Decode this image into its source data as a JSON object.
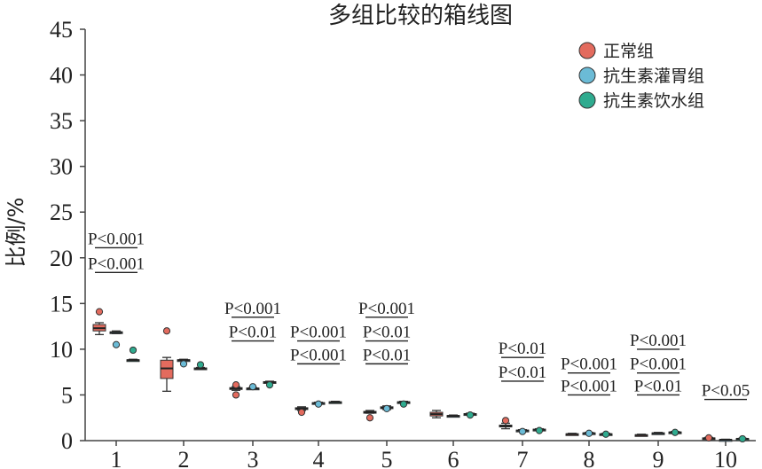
{
  "chart_data": {
    "type": "box",
    "title": "多组比较的箱线图",
    "xlabel": "",
    "ylabel": "比例/%",
    "ylim": [
      0,
      45
    ],
    "yticks": [
      0,
      5,
      10,
      15,
      20,
      25,
      30,
      35,
      40,
      45
    ],
    "categories": [
      "1",
      "2",
      "3",
      "4",
      "5",
      "6",
      "7",
      "8",
      "9",
      "10"
    ],
    "legend": {
      "placement": "top-right"
    },
    "series": [
      {
        "name": "正常组",
        "color": "#e36b5e",
        "boxes": [
          {
            "min": 11.6,
            "q1": 12.0,
            "median": 12.3,
            "q3": 12.7,
            "max": 12.9,
            "outliers": [
              14.1
            ]
          },
          {
            "min": 5.4,
            "q1": 6.8,
            "median": 7.9,
            "q3": 8.8,
            "max": 9.1,
            "outliers": [
              12.0
            ]
          },
          {
            "min": 5.5,
            "q1": 5.6,
            "median": 5.7,
            "q3": 5.8,
            "max": 5.9,
            "outliers": [
              6.1,
              5.0
            ]
          },
          {
            "min": 3.3,
            "q1": 3.4,
            "median": 3.5,
            "q3": 3.6,
            "max": 3.7,
            "outliers": [
              3.1
            ]
          },
          {
            "min": 3.0,
            "q1": 3.0,
            "median": 3.1,
            "q3": 3.2,
            "max": 3.3,
            "outliers": [
              2.5
            ]
          },
          {
            "min": 2.5,
            "q1": 2.7,
            "median": 2.9,
            "q3": 3.1,
            "max": 3.3,
            "outliers": []
          },
          {
            "min": 1.3,
            "q1": 1.5,
            "median": 1.6,
            "q3": 1.7,
            "max": 1.9,
            "outliers": [
              2.2
            ]
          },
          {
            "min": 0.6,
            "q1": 0.65,
            "median": 0.7,
            "q3": 0.75,
            "max": 0.8,
            "outliers": []
          },
          {
            "min": 0.5,
            "q1": 0.55,
            "median": 0.6,
            "q3": 0.65,
            "max": 0.7,
            "outliers": []
          },
          {
            "min": 0.15,
            "q1": 0.2,
            "median": 0.25,
            "q3": 0.3,
            "max": 0.35,
            "outliers": [
              0.3
            ]
          }
        ]
      },
      {
        "name": "抗生素灌胃组",
        "color": "#6bbbd6",
        "boxes": [
          {
            "min": 11.7,
            "q1": 11.8,
            "median": 11.85,
            "q3": 11.9,
            "max": 12.0,
            "outliers": [
              10.5
            ]
          },
          {
            "min": 8.7,
            "q1": 8.75,
            "median": 8.8,
            "q3": 8.85,
            "max": 8.9,
            "outliers": [
              8.4
            ]
          },
          {
            "min": 5.6,
            "q1": 5.65,
            "median": 5.7,
            "q3": 5.75,
            "max": 5.8,
            "outliers": [
              5.9
            ]
          },
          {
            "min": 4.0,
            "q1": 4.05,
            "median": 4.1,
            "q3": 4.15,
            "max": 4.2,
            "outliers": [
              4.0
            ]
          },
          {
            "min": 3.4,
            "q1": 3.5,
            "median": 3.6,
            "q3": 3.7,
            "max": 3.8,
            "outliers": [
              3.5
            ]
          },
          {
            "min": 2.6,
            "q1": 2.65,
            "median": 2.7,
            "q3": 2.75,
            "max": 2.8,
            "outliers": []
          },
          {
            "min": 1.0,
            "q1": 1.05,
            "median": 1.1,
            "q3": 1.15,
            "max": 1.2,
            "outliers": [
              1.0
            ]
          },
          {
            "min": 0.7,
            "q1": 0.75,
            "median": 0.8,
            "q3": 0.85,
            "max": 0.9,
            "outliers": [
              0.8
            ]
          },
          {
            "min": 0.7,
            "q1": 0.75,
            "median": 0.8,
            "q3": 0.85,
            "max": 0.9,
            "outliers": []
          },
          {
            "min": 0.05,
            "q1": 0.08,
            "median": 0.1,
            "q3": 0.12,
            "max": 0.15,
            "outliers": []
          }
        ]
      },
      {
        "name": "抗生素饮水组",
        "color": "#2fab8f",
        "boxes": [
          {
            "min": 8.7,
            "q1": 8.75,
            "median": 8.8,
            "q3": 8.85,
            "max": 8.9,
            "outliers": [
              9.9
            ]
          },
          {
            "min": 7.8,
            "q1": 7.85,
            "median": 7.9,
            "q3": 7.95,
            "max": 8.0,
            "outliers": [
              8.3
            ]
          },
          {
            "min": 6.3,
            "q1": 6.35,
            "median": 6.4,
            "q3": 6.45,
            "max": 6.5,
            "outliers": [
              6.1
            ]
          },
          {
            "min": 4.1,
            "q1": 4.15,
            "median": 4.2,
            "q3": 4.25,
            "max": 4.3,
            "outliers": []
          },
          {
            "min": 4.1,
            "q1": 4.15,
            "median": 4.2,
            "q3": 4.25,
            "max": 4.3,
            "outliers": [
              4.0
            ]
          },
          {
            "min": 2.8,
            "q1": 2.85,
            "median": 2.9,
            "q3": 2.95,
            "max": 3.0,
            "outliers": [
              2.8
            ]
          },
          {
            "min": 1.1,
            "q1": 1.15,
            "median": 1.2,
            "q3": 1.25,
            "max": 1.3,
            "outliers": [
              1.1
            ]
          },
          {
            "min": 0.6,
            "q1": 0.65,
            "median": 0.7,
            "q3": 0.75,
            "max": 0.8,
            "outliers": [
              0.7
            ]
          },
          {
            "min": 0.8,
            "q1": 0.85,
            "median": 0.9,
            "q3": 0.95,
            "max": 1.0,
            "outliers": [
              0.9
            ]
          },
          {
            "min": 0.15,
            "q1": 0.18,
            "median": 0.2,
            "q3": 0.22,
            "max": 0.25,
            "outliers": [
              0.2
            ]
          }
        ]
      }
    ],
    "annotations": [
      {
        "category": "1",
        "lines": [
          {
            "text": "P<0.001",
            "y": 21.1
          },
          {
            "text": "P<0.001",
            "y": 18.4
          }
        ]
      },
      {
        "category": "3",
        "lines": [
          {
            "text": "P<0.001",
            "y": 13.5
          },
          {
            "text": "P<0.01",
            "y": 10.9
          }
        ]
      },
      {
        "category": "4",
        "lines": [
          {
            "text": "P<0.001",
            "y": 10.9
          },
          {
            "text": "P<0.001",
            "y": 8.4
          }
        ]
      },
      {
        "category": "5",
        "lines": [
          {
            "text": "P<0.001",
            "y": 13.5
          },
          {
            "text": "P<0.01",
            "y": 10.9
          },
          {
            "text": "P<0.01",
            "y": 8.4
          }
        ]
      },
      {
        "category": "7",
        "lines": [
          {
            "text": "P<0.01",
            "y": 9.1
          },
          {
            "text": "P<0.01",
            "y": 6.5
          }
        ]
      },
      {
        "category": "8",
        "lines": [
          {
            "text": "P<0.001",
            "y": 7.4
          },
          {
            "text": "P<0.001",
            "y": 5.0
          }
        ]
      },
      {
        "category": "9",
        "lines": [
          {
            "text": "P<0.001",
            "y": 10.0
          },
          {
            "text": "P<0.001",
            "y": 7.4
          },
          {
            "text": "P<0.01",
            "y": 5.0
          }
        ]
      },
      {
        "category": "10",
        "lines": [
          {
            "text": "P<0.05",
            "y": 4.5
          }
        ]
      }
    ]
  }
}
